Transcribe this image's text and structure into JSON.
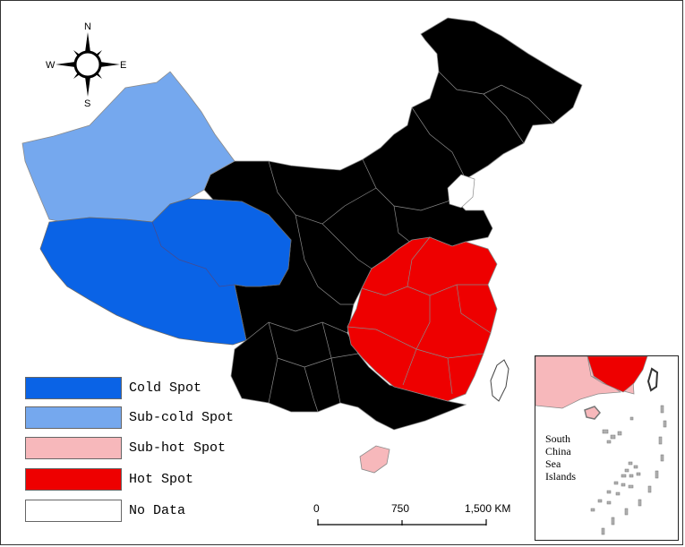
{
  "compass": {
    "north": "N",
    "south": "S",
    "east": "E",
    "west": "W"
  },
  "legend": {
    "items": [
      {
        "label": "Cold Spot",
        "color": "#0a63e6"
      },
      {
        "label": "Sub-cold Spot",
        "color": "#75a8ee"
      },
      {
        "label": "Sub-hot Spot",
        "color": "#f7b8bb"
      },
      {
        "label": "Hot Spot",
        "color": "#ee0000"
      },
      {
        "label": "No Data",
        "color": "#ffffff"
      }
    ]
  },
  "scale_bar": {
    "labels": [
      "0",
      "750",
      "1,500 KM"
    ]
  },
  "inset": {
    "lines": [
      "South",
      "China",
      "Sea",
      "Islands"
    ]
  },
  "colors": {
    "cold": "#0a63e6",
    "subcold": "#75a8ee",
    "subhot": "#f7b8bb",
    "hot": "#ee0000",
    "border": "#8a8a8a"
  }
}
